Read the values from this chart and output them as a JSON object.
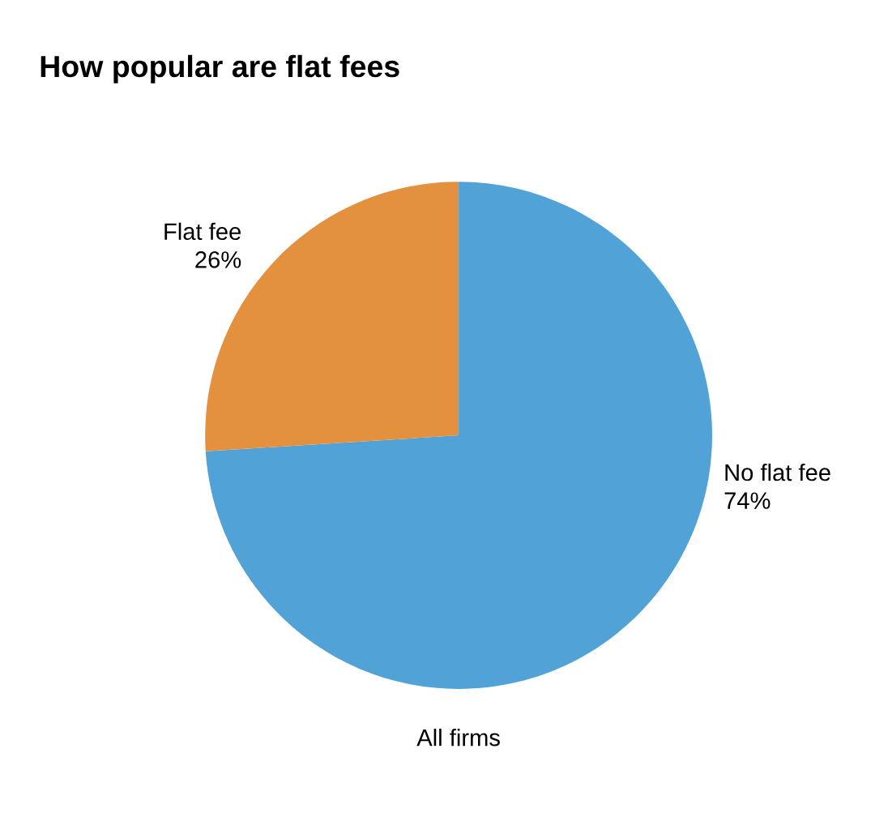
{
  "chart_data": {
    "type": "pie",
    "title": "How popular are flat fees",
    "xlabel": "All firms",
    "categories": [
      "No flat fee",
      "Flat fee"
    ],
    "values": [
      74,
      26
    ],
    "colors": [
      "#50a2d7",
      "#e3913e"
    ],
    "value_labels": [
      "74%",
      "26%"
    ],
    "legend": false
  }
}
